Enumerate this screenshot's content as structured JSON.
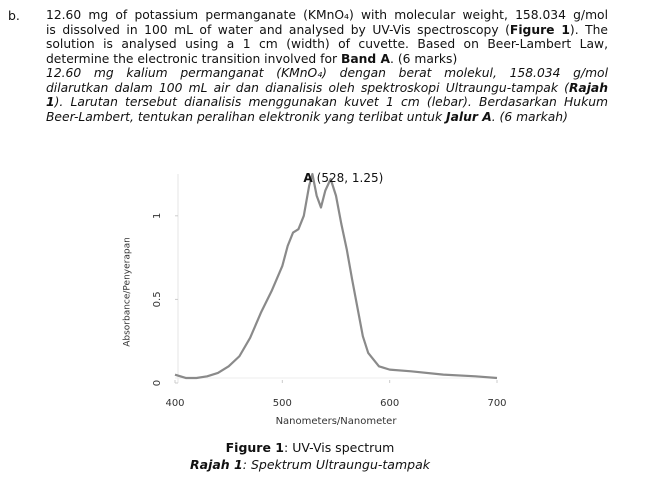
{
  "question": {
    "label": "b.",
    "english": [
      [
        {
          "text": "12.60 mg of potassium permanganate (KMnO₄) with molecular weight, 158.034 g/mol"
        }
      ],
      [
        {
          "text": "is dissolved in 100 mL of water and analysed by UV-Vis spectroscopy ("
        },
        {
          "text": "Figure 1",
          "bold": true
        },
        {
          "text": "). The"
        }
      ],
      [
        {
          "text": "solution is analysed using a 1 cm (width) of cuvette. Based on Beer-Lambert Law,"
        }
      ],
      [
        {
          "text": "determine the electronic transition involved for "
        },
        {
          "text": "Band A",
          "bold": true
        },
        {
          "text": ". (6 marks)"
        }
      ]
    ],
    "malay": [
      [
        {
          "text": "12.60 mg kalium permanganat (KMnO₄) dengan berat molekul, 158.034 g/mol"
        }
      ],
      [
        {
          "text": "dilarutkan dalam 100 mL air dan dianalisis oleh spektroskopi Ultraungu-tampak ("
        },
        {
          "text": "Rajah",
          "bold": true
        }
      ],
      [
        {
          "text": "1",
          "bold": true
        },
        {
          "text": "). Larutan tersebut dianalisis menggunakan kuvet 1 cm (lebar). Berdasarkan Hukum"
        }
      ],
      [
        {
          "text": "Beer-Lambert, tentukan peralihan elektronik yang terlibat untuk "
        },
        {
          "text": "Jalur A",
          "bold": true
        },
        {
          "text": ". (6 markah)"
        }
      ]
    ]
  },
  "chart_data": {
    "type": "line",
    "x_label": "Nanometers/Nanometer",
    "y_label": "Absorbance/Penyerapan",
    "annotation": {
      "label": "A",
      "text": "(528, 1.25)",
      "x": 528,
      "y": 1.25
    },
    "x": [
      400,
      410,
      420,
      430,
      440,
      450,
      460,
      470,
      480,
      490,
      500,
      505,
      510,
      515,
      520,
      525,
      528,
      532,
      536,
      540,
      545,
      550,
      555,
      560,
      565,
      570,
      575,
      580,
      590,
      600,
      620,
      650,
      680,
      700
    ],
    "series": [
      {
        "color": "#8a8a8a",
        "values": [
          0.05,
          0.03,
          0.03,
          0.04,
          0.06,
          0.1,
          0.16,
          0.27,
          0.42,
          0.55,
          0.7,
          0.82,
          0.9,
          0.92,
          1.0,
          1.18,
          1.25,
          1.12,
          1.05,
          1.15,
          1.22,
          1.12,
          0.95,
          0.8,
          0.62,
          0.45,
          0.28,
          0.18,
          0.1,
          0.08,
          0.07,
          0.05,
          0.04,
          0.03
        ]
      }
    ],
    "xlim": [
      400,
      700
    ],
    "ylim": [
      0,
      1.25
    ],
    "xticks": [
      400,
      500,
      600,
      700
    ],
    "yticks": [
      0,
      0.5,
      1
    ]
  },
  "caption": {
    "english": [
      {
        "text": "Figure 1",
        "bold": true
      },
      {
        "text": ": UV-Vis spectrum"
      }
    ],
    "malay": [
      {
        "text": "Rajah 1",
        "bold": true
      },
      {
        "text": ": Spektrum Ultraungu-tampak"
      }
    ]
  }
}
